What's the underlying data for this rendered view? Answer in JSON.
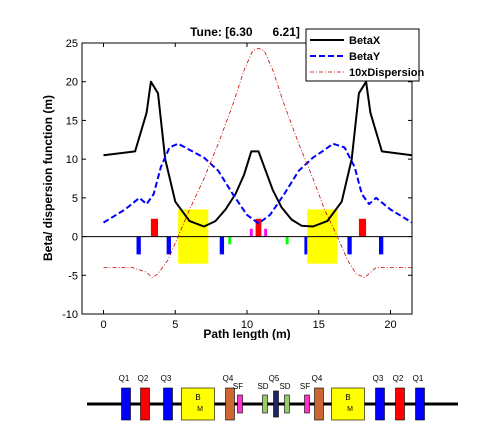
{
  "chart_data": {
    "type": "line",
    "title": "Tune: [6.30      6.21]",
    "xlabel": "Path length (m)",
    "ylabel": "Beta/ dispersion function (m)",
    "xlim": [
      -1.5,
      21.5
    ],
    "ylim": [
      -10,
      25
    ],
    "xticks": [
      0,
      5,
      10,
      15,
      20
    ],
    "yticks": [
      -10,
      -5,
      0,
      5,
      10,
      15,
      20,
      25
    ],
    "grid": false,
    "legend": "top-right",
    "series": [
      {
        "name": "BetaX",
        "color": "#000000",
        "dash": "solid",
        "x": [
          0,
          2.2,
          3.0,
          3.3,
          3.8,
          4.3,
          5.0,
          6.0,
          7.0,
          7.8,
          8.5,
          9.2,
          9.8,
          10.3,
          10.8,
          11.3,
          11.8,
          12.4,
          13.1,
          13.8,
          14.6,
          15.6,
          16.6,
          17.3,
          17.8,
          18.3,
          18.6,
          19.4,
          21.5
        ],
        "y": [
          10.5,
          11,
          16,
          20,
          18.5,
          10,
          4.5,
          2.0,
          1.3,
          2.0,
          3.5,
          5.5,
          8.0,
          11.0,
          11.0,
          8.5,
          6.0,
          3.8,
          2.2,
          1.4,
          1.3,
          2.0,
          4.5,
          10,
          18.5,
          20,
          16,
          11,
          10.5
        ]
      },
      {
        "name": "BetaY",
        "color": "#0000ff",
        "dash": "dashed",
        "x": [
          0,
          1.5,
          2.5,
          3.0,
          3.5,
          4.0,
          4.6,
          5.2,
          6.0,
          7.0,
          8.0,
          9.0,
          10.0,
          10.8,
          11.6,
          12.6,
          13.6,
          14.6,
          15.4,
          16.0,
          16.8,
          17.5,
          18.0,
          18.5,
          19.0,
          20.0,
          21.5
        ],
        "y": [
          1.8,
          3.5,
          5.0,
          4.2,
          5.5,
          9.0,
          11.5,
          12.0,
          11.2,
          10.2,
          8.5,
          5.5,
          2.8,
          1.7,
          2.8,
          5.5,
          8.5,
          10.2,
          11.2,
          12.0,
          11.5,
          9.0,
          5.5,
          4.2,
          5.0,
          3.5,
          1.8
        ]
      },
      {
        "name": "10xDispersion",
        "color": "#cc0000",
        "dash": "dashdot",
        "x": [
          0,
          2.0,
          3.0,
          3.4,
          3.8,
          4.5,
          5.2,
          6.0,
          7.0,
          8.0,
          9.0,
          9.8,
          10.4,
          10.8,
          11.2,
          11.8,
          12.6,
          13.6,
          14.6,
          15.4,
          16.3,
          17.0,
          17.6,
          18.2,
          19.0,
          21.5
        ],
        "y": [
          -4.0,
          -4.0,
          -4.6,
          -5.3,
          -4.8,
          -3.0,
          0.0,
          3.5,
          7.5,
          12.0,
          17.0,
          21.5,
          24.0,
          24.3,
          24.0,
          21.5,
          17.0,
          12.0,
          7.5,
          3.5,
          0.0,
          -3.0,
          -4.8,
          -5.3,
          -4.0,
          -4.0
        ]
      }
    ],
    "elements_in_plot": [
      {
        "kind": "quad-focusing",
        "color": "#ff0000",
        "s0": 3.3,
        "s1": 3.8,
        "top": 2.3,
        "bottom": 0
      },
      {
        "kind": "quad-focusing",
        "color": "#ff0000",
        "s0": 17.8,
        "s1": 18.3,
        "top": 2.3,
        "bottom": 0
      },
      {
        "kind": "quad-focusing",
        "color": "#ff0000",
        "s0": 10.6,
        "s1": 11.0,
        "top": 2.3,
        "bottom": 0
      },
      {
        "kind": "quad-defocusing",
        "color": "#0000ff",
        "s0": 2.3,
        "s1": 2.6,
        "top": 0,
        "bottom": -2.3
      },
      {
        "kind": "quad-defocusing",
        "color": "#0000ff",
        "s0": 4.4,
        "s1": 4.7,
        "top": 0,
        "bottom": -2.3
      },
      {
        "kind": "quad-defocusing",
        "color": "#0000ff",
        "s0": 8.1,
        "s1": 8.4,
        "top": 0,
        "bottom": -2.3
      },
      {
        "kind": "quad-defocusing",
        "color": "#0000ff",
        "s0": 14.0,
        "s1": 14.3,
        "top": 0,
        "bottom": -2.3
      },
      {
        "kind": "quad-defocusing",
        "color": "#0000ff",
        "s0": 17.0,
        "s1": 17.3,
        "top": 0,
        "bottom": -2.3
      },
      {
        "kind": "quad-defocusing",
        "color": "#0000ff",
        "s0": 19.2,
        "s1": 19.5,
        "top": 0,
        "bottom": -2.3
      },
      {
        "kind": "dipole",
        "color": "#ffff00",
        "s0": 5.2,
        "s1": 7.3,
        "top": 3.5,
        "bottom": -3.5
      },
      {
        "kind": "dipole",
        "color": "#ffff00",
        "s0": 14.2,
        "s1": 16.3,
        "top": 3.5,
        "bottom": -3.5
      },
      {
        "kind": "sextupole",
        "color": "#ff00ff",
        "s0": 10.2,
        "s1": 10.4,
        "top": 1.0,
        "bottom": 0
      },
      {
        "kind": "sextupole",
        "color": "#ff00ff",
        "s0": 11.2,
        "s1": 11.4,
        "top": 1.0,
        "bottom": 0
      },
      {
        "kind": "sextupole",
        "color": "#00ff00",
        "s0": 8.7,
        "s1": 8.9,
        "top": 0,
        "bottom": -1.0
      },
      {
        "kind": "sextupole",
        "color": "#00ff00",
        "s0": 12.7,
        "s1": 12.9,
        "top": 0,
        "bottom": -1.0
      }
    ]
  },
  "lattice": {
    "elements": [
      {
        "label": "Q1",
        "color": "#0000ff",
        "kind": "quad"
      },
      {
        "label": "Q2",
        "color": "#ff0000",
        "kind": "quad"
      },
      {
        "label": "Q3",
        "color": "#0000ff",
        "kind": "quad"
      },
      {
        "label": "B",
        "sublabel": "M",
        "color": "#ffff00",
        "kind": "dipole"
      },
      {
        "label": "Q4",
        "color": "#cc6633",
        "kind": "quad"
      },
      {
        "label": "SF",
        "color": "#ff33cc",
        "kind": "sext"
      },
      {
        "label": "SD",
        "color": "#99cc66",
        "kind": "sext"
      },
      {
        "label": "Q5",
        "color": "#222266",
        "kind": "quad"
      },
      {
        "label": "SD",
        "color": "#99cc66",
        "kind": "sext"
      },
      {
        "label": "SF",
        "color": "#ff33cc",
        "kind": "sext"
      },
      {
        "label": "Q4",
        "color": "#cc6633",
        "kind": "quad"
      },
      {
        "label": "B",
        "sublabel": "M",
        "color": "#ffff00",
        "kind": "dipole"
      },
      {
        "label": "Q3",
        "color": "#0000ff",
        "kind": "quad"
      },
      {
        "label": "Q2",
        "color": "#ff0000",
        "kind": "quad"
      },
      {
        "label": "Q1",
        "color": "#0000ff",
        "kind": "quad"
      }
    ]
  }
}
